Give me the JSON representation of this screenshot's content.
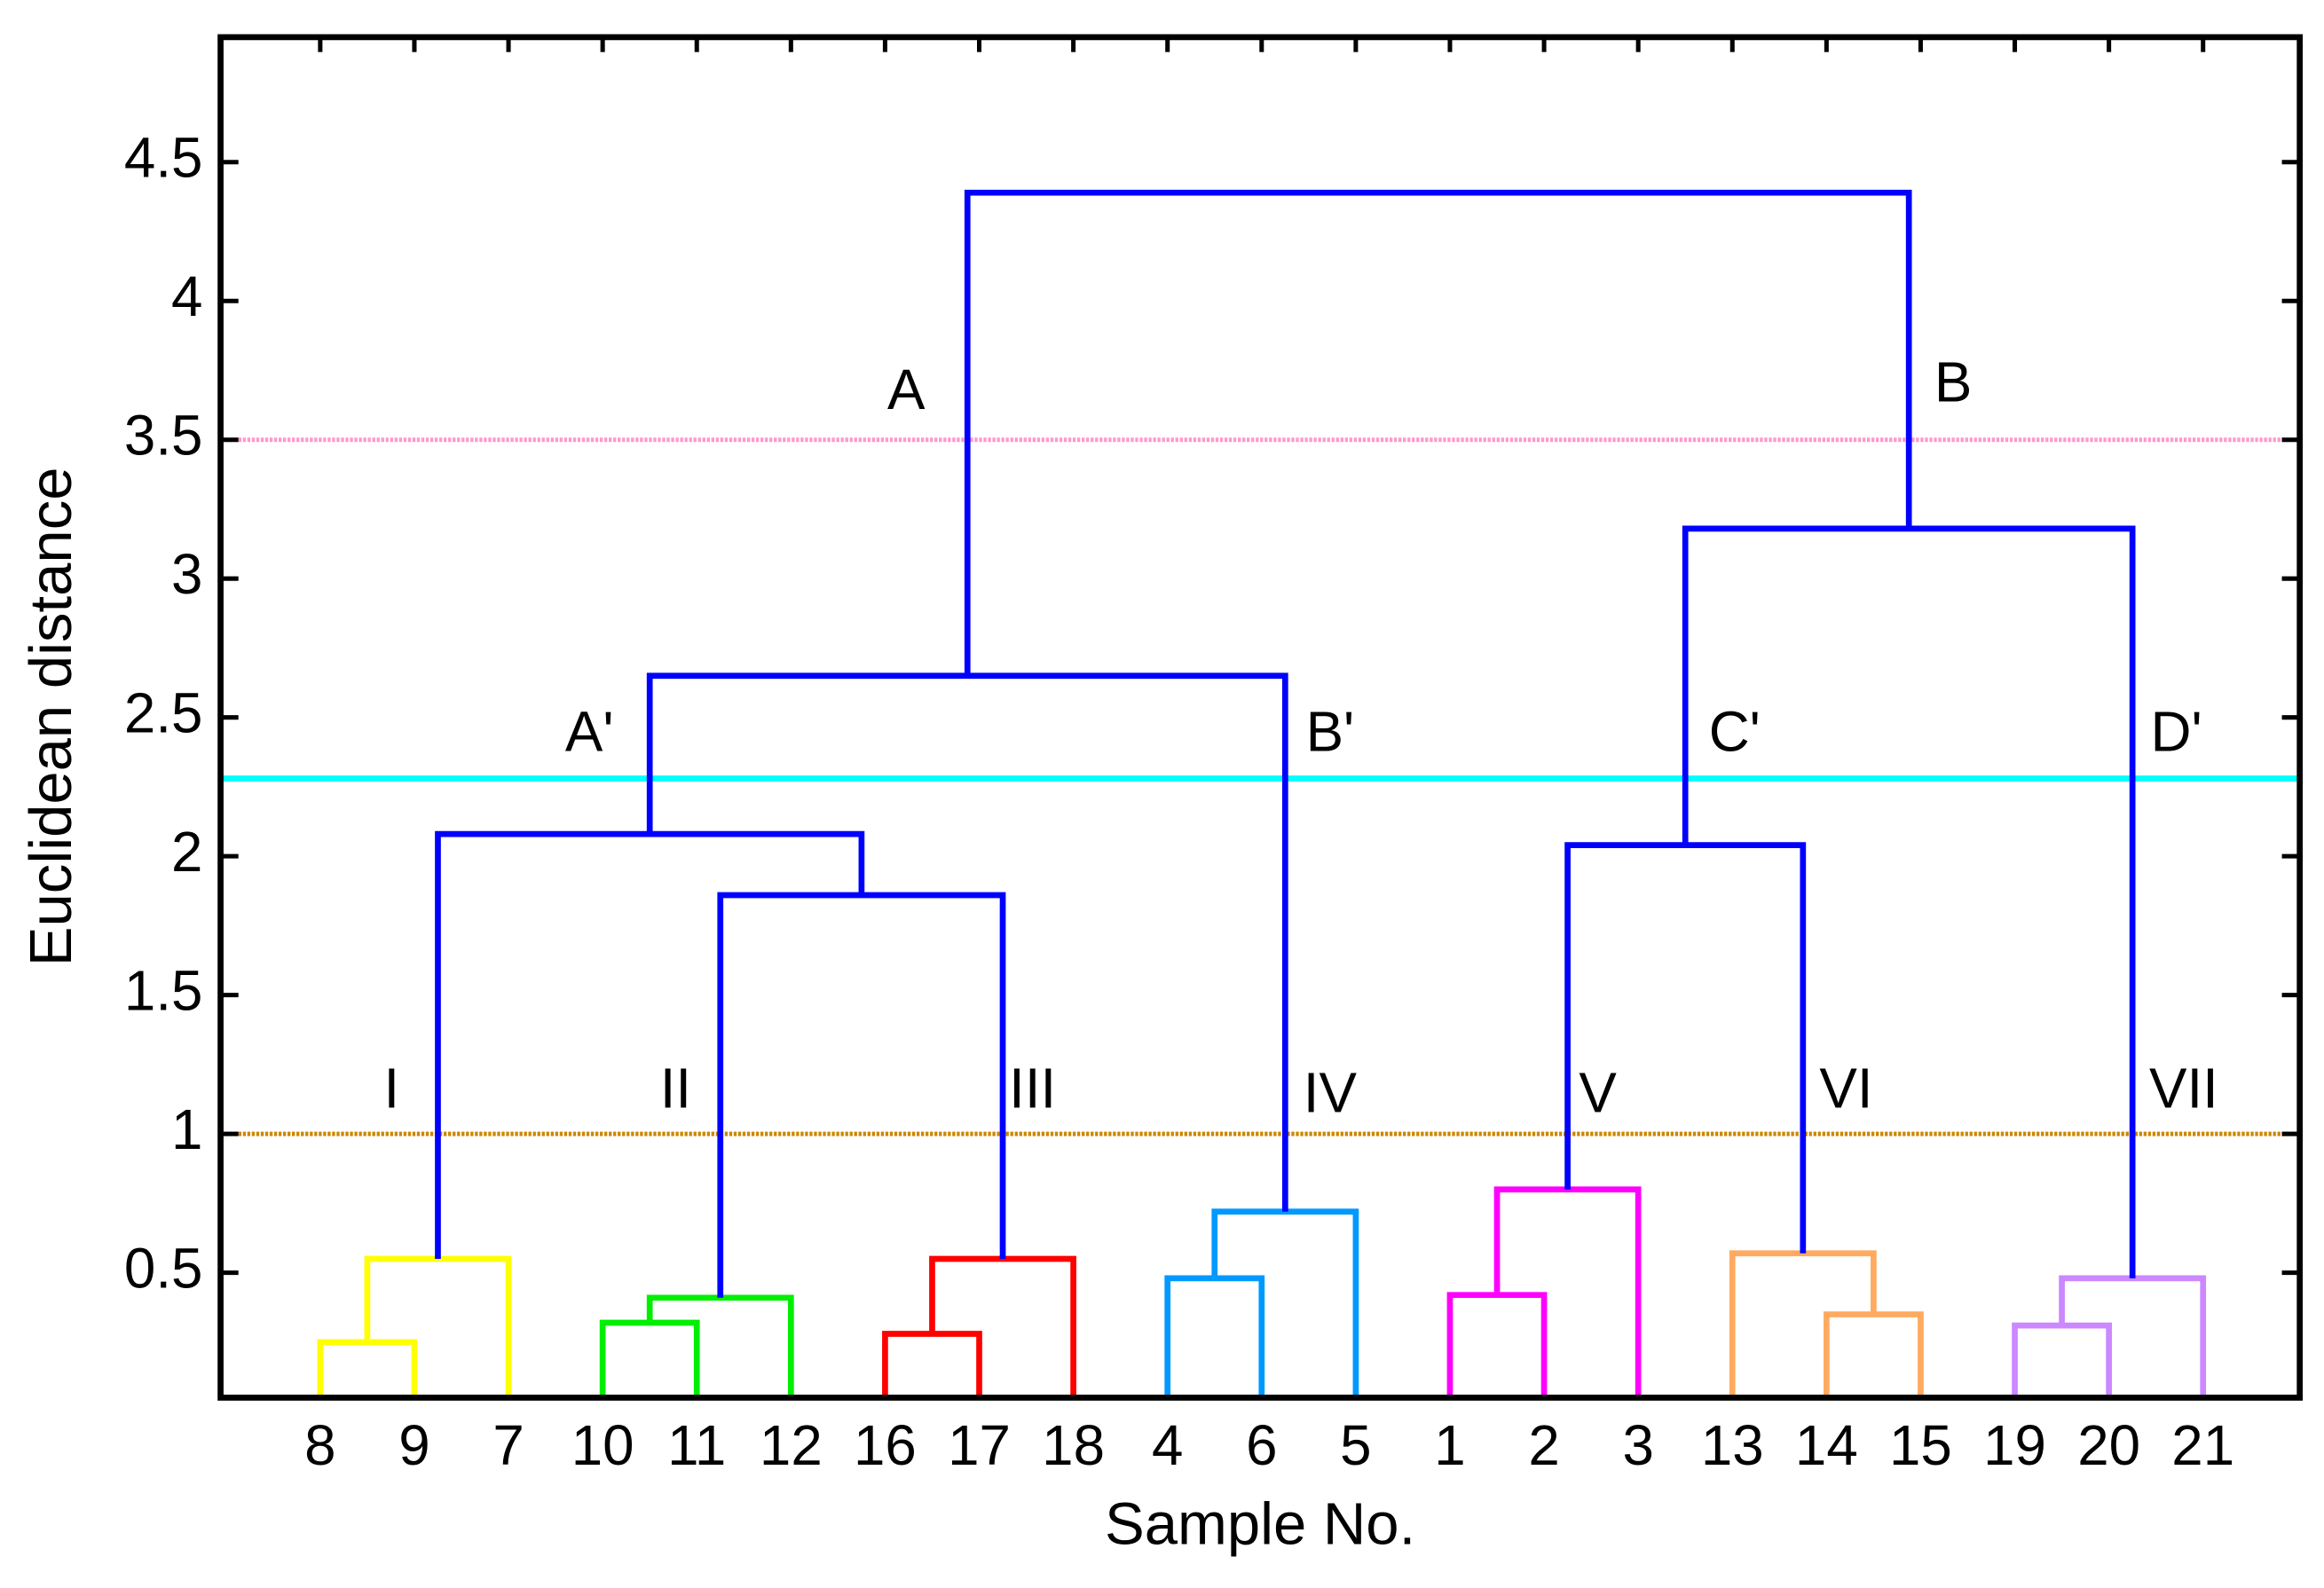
{
  "chart_data": {
    "type": "dendrogram",
    "xlabel": "Sample No.",
    "ylabel": "Euclidean distance",
    "ylim": [
      0.05,
      4.95
    ],
    "yticks": [
      0.5,
      1,
      1.5,
      2,
      2.5,
      3,
      3.5,
      4,
      4.5
    ],
    "categories": [
      "8",
      "9",
      "7",
      "10",
      "11",
      "12",
      "16",
      "17",
      "18",
      "4",
      "6",
      "5",
      "1",
      "2",
      "3",
      "13",
      "14",
      "15",
      "19",
      "20",
      "21"
    ],
    "links": [
      {
        "children": [
          0,
          1
        ],
        "height": 0.25,
        "color": "#ffff00"
      },
      {
        "children": [
          21,
          2
        ],
        "height": 0.55,
        "color": "#ffff00"
      },
      {
        "children": [
          3,
          4
        ],
        "height": 0.32,
        "color": "#00ee00"
      },
      {
        "children": [
          23,
          5
        ],
        "height": 0.41,
        "color": "#00ee00"
      },
      {
        "children": [
          6,
          7
        ],
        "height": 0.28,
        "color": "#ff0000"
      },
      {
        "children": [
          25,
          8
        ],
        "height": 0.55,
        "color": "#ff0000"
      },
      {
        "children": [
          9,
          10
        ],
        "height": 0.48,
        "color": "#0099ff"
      },
      {
        "children": [
          27,
          11
        ],
        "height": 0.72,
        "color": "#0099ff"
      },
      {
        "children": [
          12,
          13
        ],
        "height": 0.42,
        "color": "#ff00ff"
      },
      {
        "children": [
          29,
          14
        ],
        "height": 0.8,
        "color": "#ff00ff"
      },
      {
        "children": [
          16,
          17
        ],
        "height": 0.35,
        "color": "#ffaa60"
      },
      {
        "children": [
          15,
          31
        ],
        "height": 0.57,
        "color": "#ffaa60"
      },
      {
        "children": [
          18,
          19
        ],
        "height": 0.31,
        "color": "#cc88ff"
      },
      {
        "children": [
          33,
          20
        ],
        "height": 0.48,
        "color": "#cc88ff"
      },
      {
        "children": [
          24,
          26
        ],
        "height": 1.86,
        "color": "#0000ff"
      },
      {
        "children": [
          22,
          35
        ],
        "height": 2.08,
        "color": "#0000ff"
      },
      {
        "children": [
          36,
          28
        ],
        "height": 2.65,
        "color": "#0000ff"
      },
      {
        "children": [
          30,
          32
        ],
        "height": 2.04,
        "color": "#0000ff"
      },
      {
        "children": [
          38,
          34
        ],
        "height": 3.18,
        "color": "#0000ff"
      },
      {
        "children": [
          37,
          39
        ],
        "height": 4.39,
        "color": "#0000ff"
      }
    ],
    "thresholds": [
      {
        "value": 3.5,
        "color": "#ff99cc"
      },
      {
        "value": 2.28,
        "color": "#00ffff"
      },
      {
        "value": 1.0,
        "color": "#cc8800"
      }
    ],
    "annotations": [
      "A",
      "B",
      "A'",
      "B'",
      "C'",
      "D'",
      "I",
      "II",
      "III",
      "IV",
      "V",
      "VI",
      "VII"
    ]
  }
}
